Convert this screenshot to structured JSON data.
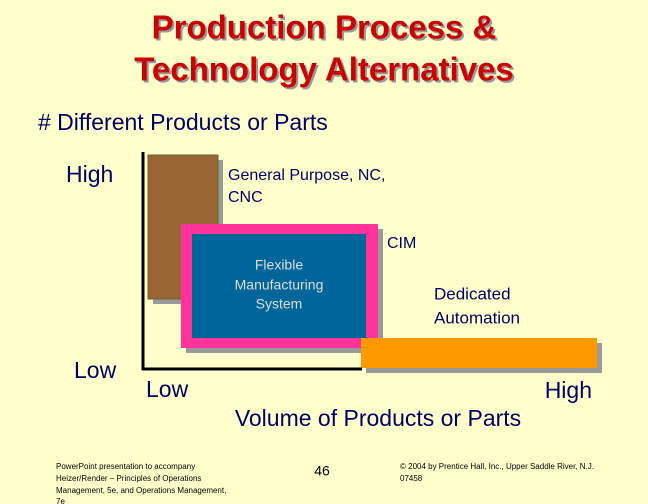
{
  "title": [
    "Production Process &",
    "Technology Alternatives"
  ],
  "y_axis": {
    "label": "# Different Products or Parts",
    "high": "High",
    "low": "Low"
  },
  "x_axis": {
    "label": "Volume of Products or Parts",
    "low": "Low",
    "high": "High"
  },
  "regions": {
    "general_purpose": [
      "General Purpose, NC,",
      "CNC"
    ],
    "cim": "CIM",
    "fms": [
      "Flexible",
      "Manufacturing",
      "System"
    ],
    "dedicated": [
      "Dedicated",
      "Automation"
    ]
  },
  "footer": {
    "source": [
      "PowerPoint presentation to accompany",
      "Heizer/Render – Principles of Operations",
      "Management, 5e, and Operations Management,",
      "7e"
    ],
    "page": "46",
    "copyright": [
      "© 2004 by Prentice Hall, Inc., Upper Saddle River, N.J.",
      "07458"
    ]
  }
}
